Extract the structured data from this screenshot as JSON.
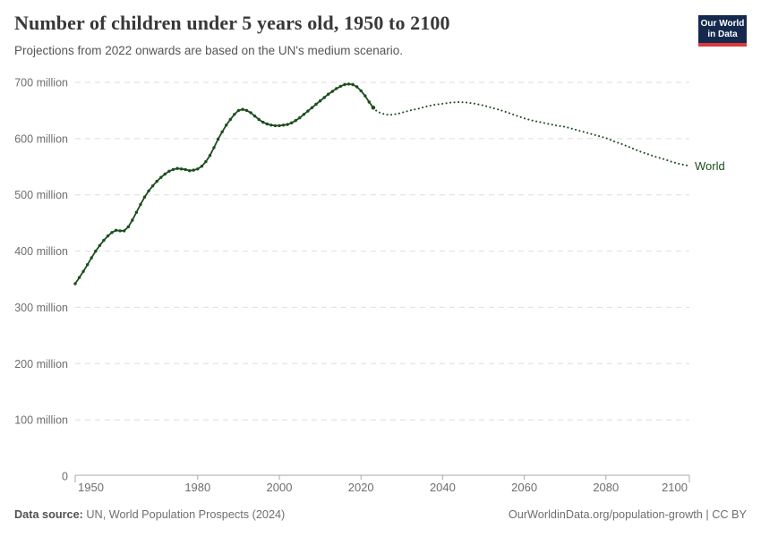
{
  "branding": {
    "line1": "Our World",
    "line2": "in Data",
    "bg_color": "#15294e",
    "accent_color": "#dc3a3a"
  },
  "footer": {
    "datasource_label": "Data source:",
    "datasource_value": " UN, World Population Prospects (2024)",
    "link": "OurWorldinData.org/population-growth | CC BY"
  },
  "chart_data": {
    "type": "line",
    "title": "Number of children under 5 years old, 1950 to 2100",
    "subtitle": "Projections from 2022 onwards are based on the UN's medium scenario.",
    "xlabel": "",
    "ylabel": "",
    "unit": "million",
    "entity_label": "World",
    "line_color": "#1d4e1d",
    "grid": true,
    "legend_position": "end-of-line-label",
    "projection_start_year": 2022,
    "xlim": [
      1950,
      2100
    ],
    "ylim": [
      0,
      700000000
    ],
    "x_ticks": [
      1950,
      1980,
      2000,
      2020,
      2040,
      2060,
      2080,
      2100
    ],
    "y_ticks": [
      {
        "v": 0,
        "label": "0"
      },
      {
        "v": 100,
        "label": "100 million"
      },
      {
        "v": 200,
        "label": "200 million"
      },
      {
        "v": 300,
        "label": "300 million"
      },
      {
        "v": 400,
        "label": "400 million"
      },
      {
        "v": 500,
        "label": "500 million"
      },
      {
        "v": 600,
        "label": "600 million"
      },
      {
        "v": 700,
        "label": "700 million"
      }
    ],
    "value_unit_note": "values below are millions of children under 5",
    "series": [
      {
        "name": "World — historical",
        "style": "solid",
        "points": [
          [
            1950,
            342
          ],
          [
            1951,
            353
          ],
          [
            1952,
            364
          ],
          [
            1953,
            376
          ],
          [
            1954,
            388
          ],
          [
            1955,
            400
          ],
          [
            1956,
            410
          ],
          [
            1957,
            419
          ],
          [
            1958,
            427
          ],
          [
            1959,
            433
          ],
          [
            1960,
            437
          ],
          [
            1961,
            436
          ],
          [
            1962,
            436
          ],
          [
            1963,
            443
          ],
          [
            1964,
            455
          ],
          [
            1965,
            469
          ],
          [
            1966,
            483
          ],
          [
            1967,
            496
          ],
          [
            1968,
            507
          ],
          [
            1969,
            516
          ],
          [
            1970,
            524
          ],
          [
            1971,
            531
          ],
          [
            1972,
            537
          ],
          [
            1973,
            542
          ],
          [
            1974,
            545
          ],
          [
            1975,
            547
          ],
          [
            1976,
            546
          ],
          [
            1977,
            545
          ],
          [
            1978,
            543
          ],
          [
            1979,
            544
          ],
          [
            1980,
            546
          ],
          [
            1981,
            551
          ],
          [
            1982,
            559
          ],
          [
            1983,
            570
          ],
          [
            1984,
            584
          ],
          [
            1985,
            599
          ],
          [
            1986,
            612
          ],
          [
            1987,
            624
          ],
          [
            1988,
            634
          ],
          [
            1989,
            643
          ],
          [
            1990,
            650
          ],
          [
            1991,
            652
          ],
          [
            1992,
            650
          ],
          [
            1993,
            646
          ],
          [
            1994,
            640
          ],
          [
            1995,
            634
          ],
          [
            1996,
            629
          ],
          [
            1997,
            626
          ],
          [
            1998,
            624
          ],
          [
            1999,
            623
          ],
          [
            2000,
            623
          ],
          [
            2001,
            624
          ],
          [
            2002,
            625
          ],
          [
            2003,
            628
          ],
          [
            2004,
            632
          ],
          [
            2005,
            637
          ],
          [
            2006,
            643
          ],
          [
            2007,
            649
          ],
          [
            2008,
            655
          ],
          [
            2009,
            661
          ],
          [
            2010,
            667
          ],
          [
            2011,
            673
          ],
          [
            2012,
            679
          ],
          [
            2013,
            684
          ],
          [
            2014,
            689
          ],
          [
            2015,
            693
          ],
          [
            2016,
            696
          ],
          [
            2017,
            697
          ],
          [
            2018,
            696
          ],
          [
            2019,
            692
          ],
          [
            2020,
            685
          ],
          [
            2021,
            676
          ],
          [
            2022,
            665
          ],
          [
            2023,
            655
          ]
        ]
      },
      {
        "name": "World — projection (UN medium scenario)",
        "style": "dotted",
        "points": [
          [
            2023,
            655
          ],
          [
            2024,
            648
          ],
          [
            2025,
            645
          ],
          [
            2026,
            643
          ],
          [
            2027,
            642
          ],
          [
            2028,
            643
          ],
          [
            2029,
            644
          ],
          [
            2030,
            646
          ],
          [
            2032,
            650
          ],
          [
            2034,
            653
          ],
          [
            2036,
            657
          ],
          [
            2038,
            660
          ],
          [
            2040,
            662
          ],
          [
            2042,
            664
          ],
          [
            2044,
            665
          ],
          [
            2046,
            664
          ],
          [
            2048,
            662
          ],
          [
            2050,
            659
          ],
          [
            2052,
            655
          ],
          [
            2054,
            651
          ],
          [
            2056,
            646
          ],
          [
            2058,
            641
          ],
          [
            2060,
            636
          ],
          [
            2062,
            632
          ],
          [
            2064,
            629
          ],
          [
            2066,
            626
          ],
          [
            2068,
            623
          ],
          [
            2070,
            621
          ],
          [
            2072,
            617
          ],
          [
            2074,
            613
          ],
          [
            2076,
            609
          ],
          [
            2078,
            605
          ],
          [
            2080,
            601
          ],
          [
            2082,
            595
          ],
          [
            2084,
            590
          ],
          [
            2086,
            584
          ],
          [
            2088,
            578
          ],
          [
            2090,
            573
          ],
          [
            2092,
            568
          ],
          [
            2094,
            564
          ],
          [
            2096,
            559
          ],
          [
            2098,
            555
          ],
          [
            2100,
            552
          ]
        ]
      }
    ]
  }
}
